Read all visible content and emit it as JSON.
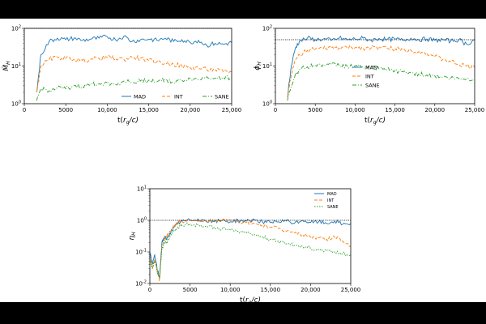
{
  "chart_data": [
    {
      "type": "line",
      "title": "",
      "xlabel": "t(r_g/c)",
      "ylabel": "Ṁ_H",
      "xlim": [
        0,
        25000
      ],
      "ylim": [
        1,
        100
      ],
      "yscale": "log",
      "x_ticks": [
        "0",
        "5000",
        "10,000",
        "15,000",
        "20,000",
        "25,000"
      ],
      "y_ticks": [
        "10^0",
        "10^1",
        "10^2"
      ],
      "grid": false,
      "legend": "bottom-right, single row",
      "series": [
        {
          "name": "MAD",
          "color": "#1f77b4",
          "style": "solid",
          "x": [
            1500,
            2000,
            3000,
            4000,
            5000,
            6000,
            7000,
            8000,
            9000,
            10000,
            11000,
            12000,
            13000,
            14000,
            15000,
            16000,
            17000,
            18000,
            19000,
            20000,
            21000,
            22000,
            23000,
            24000,
            25000
          ],
          "y": [
            2,
            20,
            45,
            55,
            50,
            55,
            48,
            52,
            55,
            60,
            50,
            62,
            45,
            50,
            52,
            48,
            55,
            45,
            50,
            42,
            48,
            35,
            40,
            38,
            42
          ]
        },
        {
          "name": "INT",
          "color": "#ff7f0e",
          "style": "dashed",
          "x": [
            1500,
            2000,
            3000,
            4000,
            5000,
            6000,
            7000,
            8000,
            9000,
            10000,
            11000,
            12000,
            13000,
            14000,
            15000,
            16000,
            17000,
            18000,
            19000,
            20000,
            21000,
            22000,
            23000,
            24000,
            25000
          ],
          "y": [
            2,
            10,
            15,
            17,
            16,
            15,
            14,
            15,
            16,
            17,
            16,
            15,
            17,
            16,
            14,
            13,
            12,
            11,
            10,
            9,
            9,
            8,
            8,
            7,
            7
          ]
        },
        {
          "name": "SANE",
          "color": "#2ca02c",
          "style": "dashdot",
          "x": [
            1500,
            2000,
            3000,
            4000,
            5000,
            6000,
            7000,
            8000,
            9000,
            10000,
            11000,
            12000,
            13000,
            14000,
            15000,
            16000,
            17000,
            18000,
            19000,
            20000,
            21000,
            22000,
            23000,
            24000,
            25000
          ],
          "y": [
            1.2,
            2.5,
            2.2,
            2.6,
            2.5,
            3,
            2.8,
            3.2,
            3.4,
            3.6,
            3.2,
            4,
            3.6,
            4,
            4.2,
            3.8,
            4.5,
            3.6,
            4.2,
            4.6,
            4.3,
            5.2,
            4.8,
            5,
            4.8
          ]
        }
      ],
      "reference_line": {
        "y": 100,
        "style": "dotted",
        "color": "#000000"
      }
    },
    {
      "type": "line",
      "title": "",
      "xlabel": "t(r_g/c)",
      "ylabel": "ϕ_H",
      "xlim": [
        0,
        25000
      ],
      "ylim": [
        1,
        100
      ],
      "yscale": "log",
      "x_ticks": [
        "0",
        "5000",
        "10,000",
        "15,000",
        "20,000",
        "25,000"
      ],
      "y_ticks": [
        "10^0",
        "10^1",
        "10^2"
      ],
      "grid": false,
      "legend": "center-left",
      "series": [
        {
          "name": "MAD",
          "color": "#1f77b4",
          "style": "solid",
          "x": [
            1500,
            2000,
            2500,
            3000,
            4000,
            5000,
            6000,
            7000,
            8000,
            9000,
            10000,
            11000,
            12000,
            13000,
            14000,
            15000,
            16000,
            17000,
            18000,
            19000,
            20000,
            21000,
            22000,
            23000,
            24000,
            25000
          ],
          "y": [
            1.5,
            10,
            30,
            45,
            55,
            50,
            52,
            48,
            55,
            50,
            52,
            55,
            48,
            54,
            50,
            52,
            48,
            55,
            50,
            52,
            48,
            50,
            46,
            50,
            38,
            50
          ]
        },
        {
          "name": "INT",
          "color": "#ff7f0e",
          "style": "dashed",
          "x": [
            1500,
            2000,
            2500,
            3000,
            4000,
            5000,
            6000,
            7000,
            8000,
            9000,
            10000,
            11000,
            12000,
            13000,
            14000,
            15000,
            16000,
            17000,
            18000,
            19000,
            20000,
            21000,
            22000,
            23000,
            24000,
            25000
          ],
          "y": [
            1.5,
            6,
            14,
            20,
            26,
            28,
            29,
            30,
            30,
            31,
            31,
            30,
            30,
            31,
            30,
            29,
            27,
            26,
            24,
            22,
            18,
            15,
            13,
            11,
            10,
            9
          ]
        },
        {
          "name": "SANE",
          "color": "#2ca02c",
          "style": "dashdot",
          "x": [
            1500,
            2000,
            2500,
            3000,
            4000,
            5000,
            6000,
            7000,
            8000,
            9000,
            10000,
            11000,
            12000,
            13000,
            14000,
            15000,
            16000,
            17000,
            18000,
            19000,
            20000,
            21000,
            22000,
            23000,
            24000,
            25000
          ],
          "y": [
            1.2,
            3,
            6,
            8,
            9.5,
            10.5,
            11,
            11,
            10.5,
            10,
            10,
            9.5,
            9,
            8.5,
            8,
            7.5,
            7,
            6.6,
            6.2,
            5.8,
            5.5,
            5.1,
            4.8,
            4.6,
            4.5,
            4.4
          ]
        }
      ],
      "reference_line": {
        "y": 50,
        "style": "dotted",
        "color": "#000000"
      }
    },
    {
      "type": "line",
      "title": "",
      "xlabel": "t(r_g/c)",
      "ylabel": "η_H",
      "xlim": [
        0,
        25000
      ],
      "ylim": [
        0.01,
        10
      ],
      "yscale": "log",
      "x_ticks": [
        "0",
        "5000",
        "10,000",
        "15,000",
        "20,000",
        "25,000"
      ],
      "y_ticks": [
        "10^-2",
        "10^-1",
        "10^0",
        "10^1"
      ],
      "grid": false,
      "legend": "top-right",
      "series": [
        {
          "name": "MAD",
          "color": "#1f77b4",
          "style": "solid",
          "x": [
            0,
            300,
            600,
            900,
            1200,
            1500,
            1800,
            2100,
            2500,
            3000,
            3500,
            4000,
            5000,
            6000,
            7000,
            8000,
            9000,
            10000,
            11000,
            12000,
            13000,
            14000,
            15000,
            16000,
            17000,
            18000,
            19000,
            20000,
            21000,
            22000,
            23000,
            24000,
            25000
          ],
          "y": [
            0.1,
            0.04,
            0.08,
            0.03,
            0.015,
            0.2,
            0.3,
            0.25,
            0.4,
            0.6,
            0.8,
            0.95,
            1.0,
            1.1,
            0.95,
            0.9,
            1.0,
            0.9,
            1.0,
            0.95,
            1.05,
            0.9,
            0.85,
            0.9,
            0.95,
            0.8,
            1.0,
            0.85,
            0.9,
            0.8,
            0.95,
            0.75,
            0.8
          ]
        },
        {
          "name": "INT",
          "color": "#ff7f0e",
          "style": "dashed",
          "x": [
            0,
            300,
            600,
            900,
            1200,
            1500,
            1800,
            2100,
            2500,
            3000,
            3500,
            4000,
            5000,
            6000,
            7000,
            8000,
            9000,
            10000,
            11000,
            12000,
            13000,
            14000,
            15000,
            16000,
            17000,
            18000,
            19000,
            20000,
            21000,
            22000,
            23000,
            24000,
            25000
          ],
          "y": [
            0.08,
            0.03,
            0.06,
            0.03,
            0.012,
            0.15,
            0.25,
            0.3,
            0.45,
            0.65,
            0.85,
            0.95,
            1.0,
            1.0,
            0.9,
            0.95,
            1.0,
            1.0,
            0.9,
            0.85,
            0.8,
            0.7,
            0.6,
            0.55,
            0.45,
            0.4,
            0.35,
            0.3,
            0.28,
            0.25,
            0.3,
            0.22,
            0.15
          ]
        },
        {
          "name": "SANE",
          "color": "#2ca02c",
          "style": "dotted",
          "x": [
            0,
            300,
            600,
            900,
            1200,
            1500,
            1800,
            2100,
            2500,
            3000,
            3500,
            4000,
            5000,
            6000,
            7000,
            8000,
            9000,
            10000,
            11000,
            12000,
            13000,
            14000,
            15000,
            16000,
            17000,
            18000,
            19000,
            20000,
            21000,
            22000,
            23000,
            24000,
            25000
          ],
          "y": [
            0.06,
            0.03,
            0.05,
            0.025,
            0.015,
            0.12,
            0.2,
            0.2,
            0.3,
            0.45,
            0.6,
            0.7,
            0.75,
            0.7,
            0.65,
            0.6,
            0.55,
            0.5,
            0.45,
            0.4,
            0.35,
            0.3,
            0.25,
            0.22,
            0.18,
            0.16,
            0.15,
            0.13,
            0.12,
            0.11,
            0.1,
            0.09,
            0.08
          ]
        }
      ],
      "reference_line": {
        "y": 1,
        "style": "dotted",
        "color": "#000000"
      }
    }
  ]
}
